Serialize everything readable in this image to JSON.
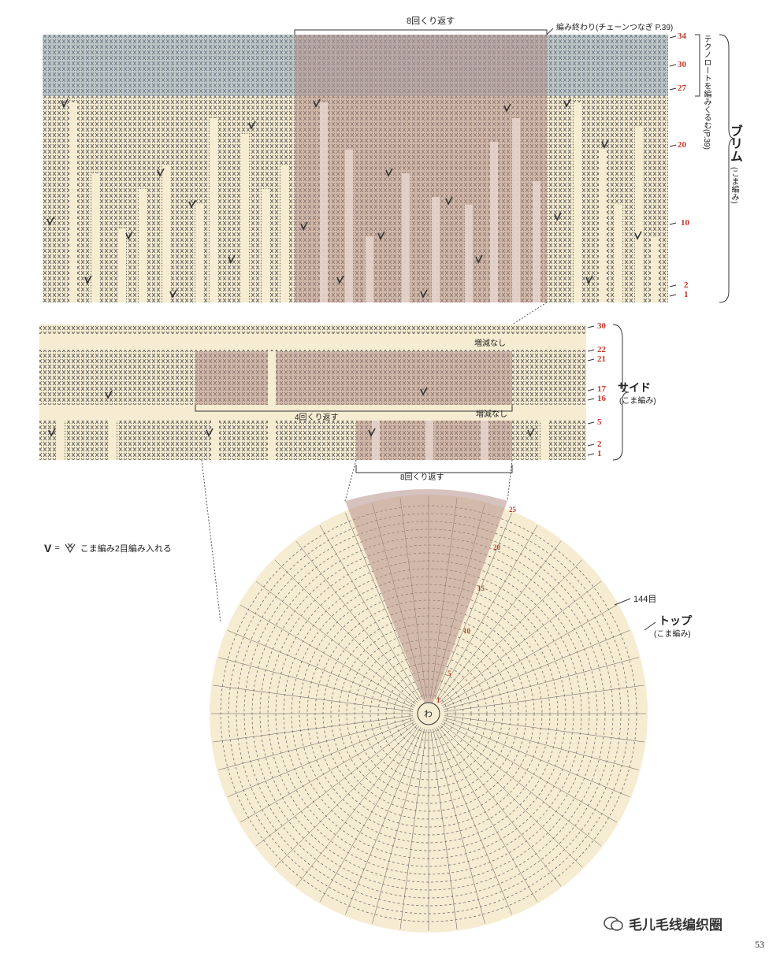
{
  "colors": {
    "paper": "#f6ecd2",
    "stitch": "#4a4a4a",
    "blue_band": "#7e9dbd",
    "repeat_shade": "#b58f89",
    "rownum_red": "#c0392b"
  },
  "brim": {
    "repeat_label": "8回くり返す",
    "end_label": "編み終わり(チェーンつなぎ P.39)",
    "vertical_note": "テクノロートを編みくるむ(P.39)",
    "title": "ブリム",
    "subtitle": "(こま編み)",
    "row_numbers": [
      "34",
      "30",
      "27",
      "20",
      "10",
      "2",
      "1"
    ]
  },
  "side": {
    "title": "サイド",
    "subtitle": "(こま編み)",
    "no_change_top": "増減なし",
    "no_change_bottom": "増減なし",
    "repeat_label": "4回くり返す",
    "row_numbers": [
      "30",
      "22",
      "21",
      "17",
      "16",
      "5",
      "2",
      "1"
    ]
  },
  "top": {
    "repeat_label": "8回くり返す",
    "stitch_count": "144目",
    "title": "トップ",
    "subtitle": "(こま編み)",
    "center": "わ",
    "row_marks": [
      "25",
      "20",
      "15",
      "10",
      "5",
      "1"
    ]
  },
  "legend": {
    "symbol": "V",
    "equals": "=",
    "text": "こま編み2目編み入れる"
  },
  "watermark": "毛儿毛线编织圈",
  "page_number": "53"
}
